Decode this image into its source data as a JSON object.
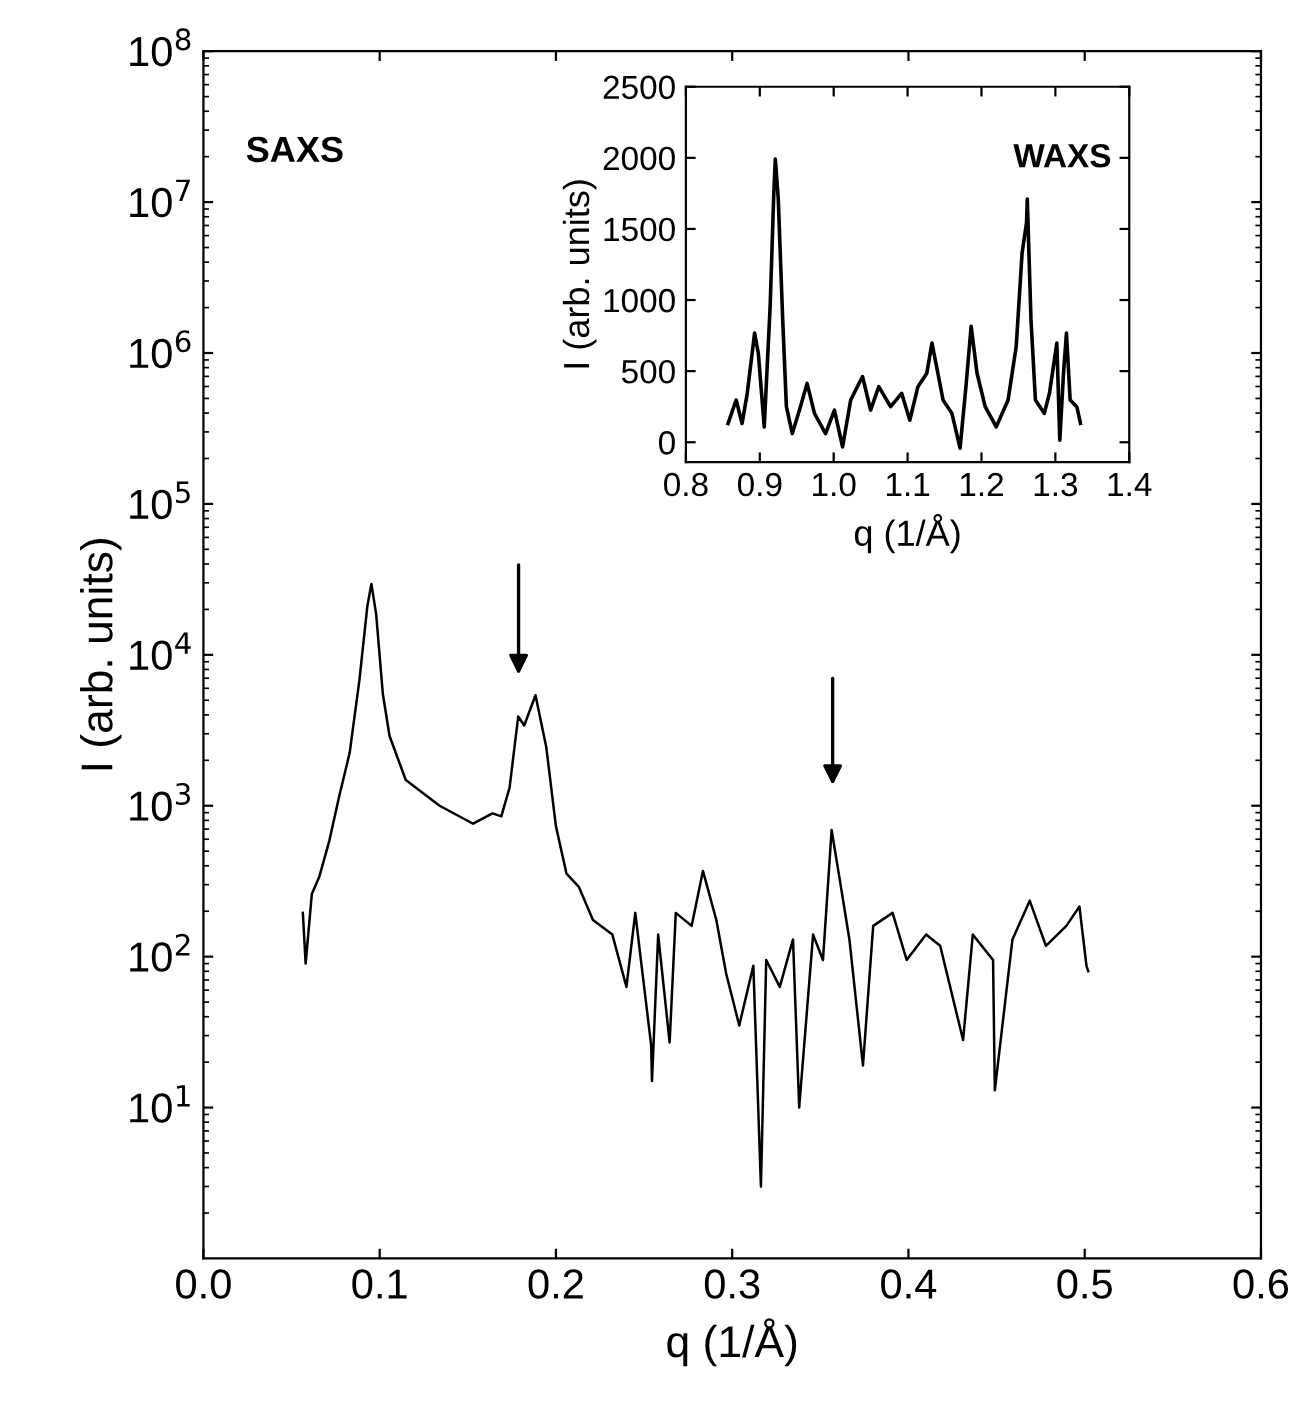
{
  "chart_data": [
    {
      "type": "line",
      "xlabel": "q (1/Å)",
      "ylabel": "I (arb. units)",
      "log": "y",
      "xlim": [
        0.0,
        0.6
      ],
      "xticks": [
        {
          "value": 0.0,
          "label": "0.0"
        },
        0.1,
        0.2,
        0.3,
        0.4,
        0.5,
        0.6
      ],
      "ylim": [
        1,
        100000000
      ],
      "yticks": [
        {
          "value": 10,
          "label": "10$^{1}$"
        },
        {
          "value": 100,
          "label": "10$^{2}$"
        },
        {
          "value": 1000,
          "label": "10$^{3}$"
        },
        {
          "value": 10000,
          "label": "10$^{4}$"
        },
        {
          "value": 100000,
          "label": "10$^{5}$"
        },
        {
          "value": 1000000,
          "label": "10$^{6}$"
        },
        {
          "value": 10000000,
          "label": "10$^{7}$"
        },
        {
          "value": 100000000,
          "label": "10$^{8}$"
        }
      ],
      "grid": false,
      "legend": false,
      "marker": "none",
      "line_style": "solid",
      "annotations": [
        "SAXS"
      ],
      "series": [
        {
          "color": "#000000",
          "x": [
            0.0564,
            0.058,
            0.0615,
            0.0658,
            0.0715,
            0.077,
            0.083,
            0.0885,
            0.093,
            0.0953,
            0.098,
            0.1018,
            0.1056,
            0.1148,
            0.134,
            0.153,
            0.164,
            0.169,
            0.1737,
            0.1786,
            0.182,
            0.1884,
            0.1945,
            0.2,
            0.206,
            0.213,
            0.221,
            0.232,
            0.24,
            0.245,
            0.254,
            0.2545,
            0.258,
            0.2645,
            0.268,
            0.277,
            0.2834,
            0.291,
            0.2966,
            0.304,
            0.312,
            0.3163,
            0.3193,
            0.327,
            0.3345,
            0.338,
            0.3459,
            0.3515,
            0.3564,
            0.361,
            0.3665,
            0.3742,
            0.38,
            0.391,
            0.399,
            0.41,
            0.418,
            0.431,
            0.4365,
            0.448,
            0.449,
            0.459,
            0.4688,
            0.478,
            0.4896,
            0.497,
            0.501,
            0.502
          ],
          "values": [
            195,
            90,
            260,
            340,
            590,
            1150,
            2250,
            6800,
            21000,
            29500,
            18600,
            5500,
            2900,
            1480,
            1000,
            760,
            890,
            850,
            1320,
            3900,
            3400,
            5400,
            2450,
            730,
            355,
            290,
            175,
            140,
            63,
            195,
            26,
            15,
            140,
            27,
            195,
            160,
            370,
            175,
            77,
            35,
            87,
            3,
            95,
            63,
            130,
            10,
            140,
            95,
            690,
            325,
            130,
            19,
            160,
            195,
            95,
            140,
            118,
            28,
            140,
            95,
            13,
            130,
            235,
            118,
            160,
            215,
            87,
            80
          ]
        }
      ]
    },
    {
      "type": "line",
      "xlabel": "q (1/Å)",
      "ylabel": "I (arb. units)",
      "xlim": [
        0.8,
        1.4
      ],
      "xticks": [
        0.8,
        0.9,
        {
          "value": 1.0,
          "label": "1.0"
        },
        1.1,
        1.2,
        1.3,
        1.4
      ],
      "ylim": [
        -140,
        2500
      ],
      "yticks": [
        0,
        500,
        1000,
        1500,
        2000,
        2500
      ],
      "grid": false,
      "legend": false,
      "marker": "none",
      "line_style": "solid",
      "annotations": [
        "WAXS"
      ],
      "series": [
        {
          "color": "#000000",
          "x": [
            0.857,
            0.868,
            0.876,
            0.883,
            0.893,
            0.898,
            0.906,
            0.914,
            0.919,
            0.921,
            0.925,
            0.931,
            0.936,
            0.944,
            0.955,
            0.964,
            0.974,
            0.989,
            1.001,
            1.012,
            1.023,
            1.039,
            1.05,
            1.061,
            1.077,
            1.092,
            1.103,
            1.114,
            1.126,
            1.133,
            1.141,
            1.148,
            1.16,
            1.171,
            1.179,
            1.186,
            1.194,
            1.205,
            1.22,
            1.236,
            1.247,
            1.255,
            1.261,
            1.262,
            1.267,
            1.273,
            1.285,
            1.292,
            1.302,
            1.306,
            1.311,
            1.315,
            1.32,
            1.329,
            1.334
          ],
          "values": [
            132,
            297,
            132,
            344,
            768,
            626,
            108,
            956,
            1757,
            1992,
            1710,
            862,
            250,
            61,
            250,
            414,
            203,
            61,
            226,
            -33,
            297,
            462,
            226,
            391,
            250,
            344,
            155,
            391,
            485,
            697,
            485,
            297,
            203,
            -42,
            391,
            815,
            485,
            250,
            108,
            297,
            673,
            1333,
            1545,
            1710,
            862,
            297,
            203,
            344,
            697,
            14,
            485,
            768,
            297,
            250,
            132
          ]
        }
      ]
    }
  ]
}
